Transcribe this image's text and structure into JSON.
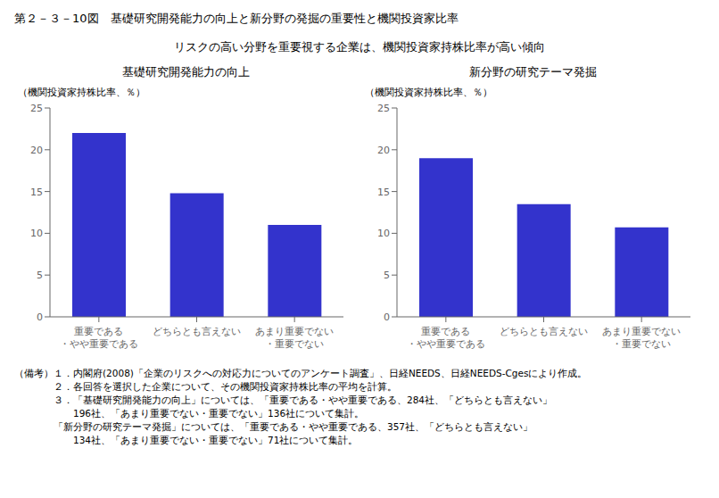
{
  "title": "第２－３－10図　基礎研究開発能力の向上と新分野の発掘の重要性と機関投資家比率",
  "subtitle": "リスクの高い分野を重要視する企業は、機関投資家持株比率が高い傾向",
  "annotations": [
    "（備考）１．内閣府(2008)「企業のリスクへの対応力についてのアンケート調査」、日経NEEDS、日経NEEDS-Cgesにより作成。",
    "　　　　２．各回答を選択した企業について、その機関投資家持株比率の平均を計算。",
    "　　　　３．「基礎研究開発能力の向上」については、「重要である・やや重要である、284社、「どちらとも言えない」",
    "　　　　　　196社、「あまり重要でない・重要でない」136社について集計。",
    "　　　　「新分野の研究テーマ発掘」については、「重要である・やや重要である、357社、「どちらとも言えない」",
    "　　　　　　134社、「あまり重要でない・重要でない」71社について集計。"
  ],
  "chart_data": [
    {
      "type": "bar",
      "title": "基礎研究開発能力の向上",
      "ylabel": "（機関投資家持株比率、％）",
      "categories": [
        "重要である\n・やや重要である",
        "どちらとも言えない",
        "あまり重要でない\n・重要でない"
      ],
      "values": [
        22.0,
        14.8,
        11.0
      ],
      "color": "#3333cc",
      "ylim": [
        0,
        25
      ],
      "yticks": [
        0,
        5,
        10,
        15,
        20,
        25
      ],
      "grid": false
    },
    {
      "type": "bar",
      "title": "新分野の研究テーマ発掘",
      "ylabel": "（機関投資家持株比率、％）",
      "categories": [
        "重要である\n・やや重要である",
        "どちらとも言えない",
        "あまり重要でない\n・重要でない"
      ],
      "values": [
        19.0,
        13.5,
        10.7
      ],
      "color": "#3333cc",
      "ylim": [
        0,
        25
      ],
      "yticks": [
        0,
        5,
        10,
        15,
        20,
        25
      ],
      "grid": false
    }
  ]
}
